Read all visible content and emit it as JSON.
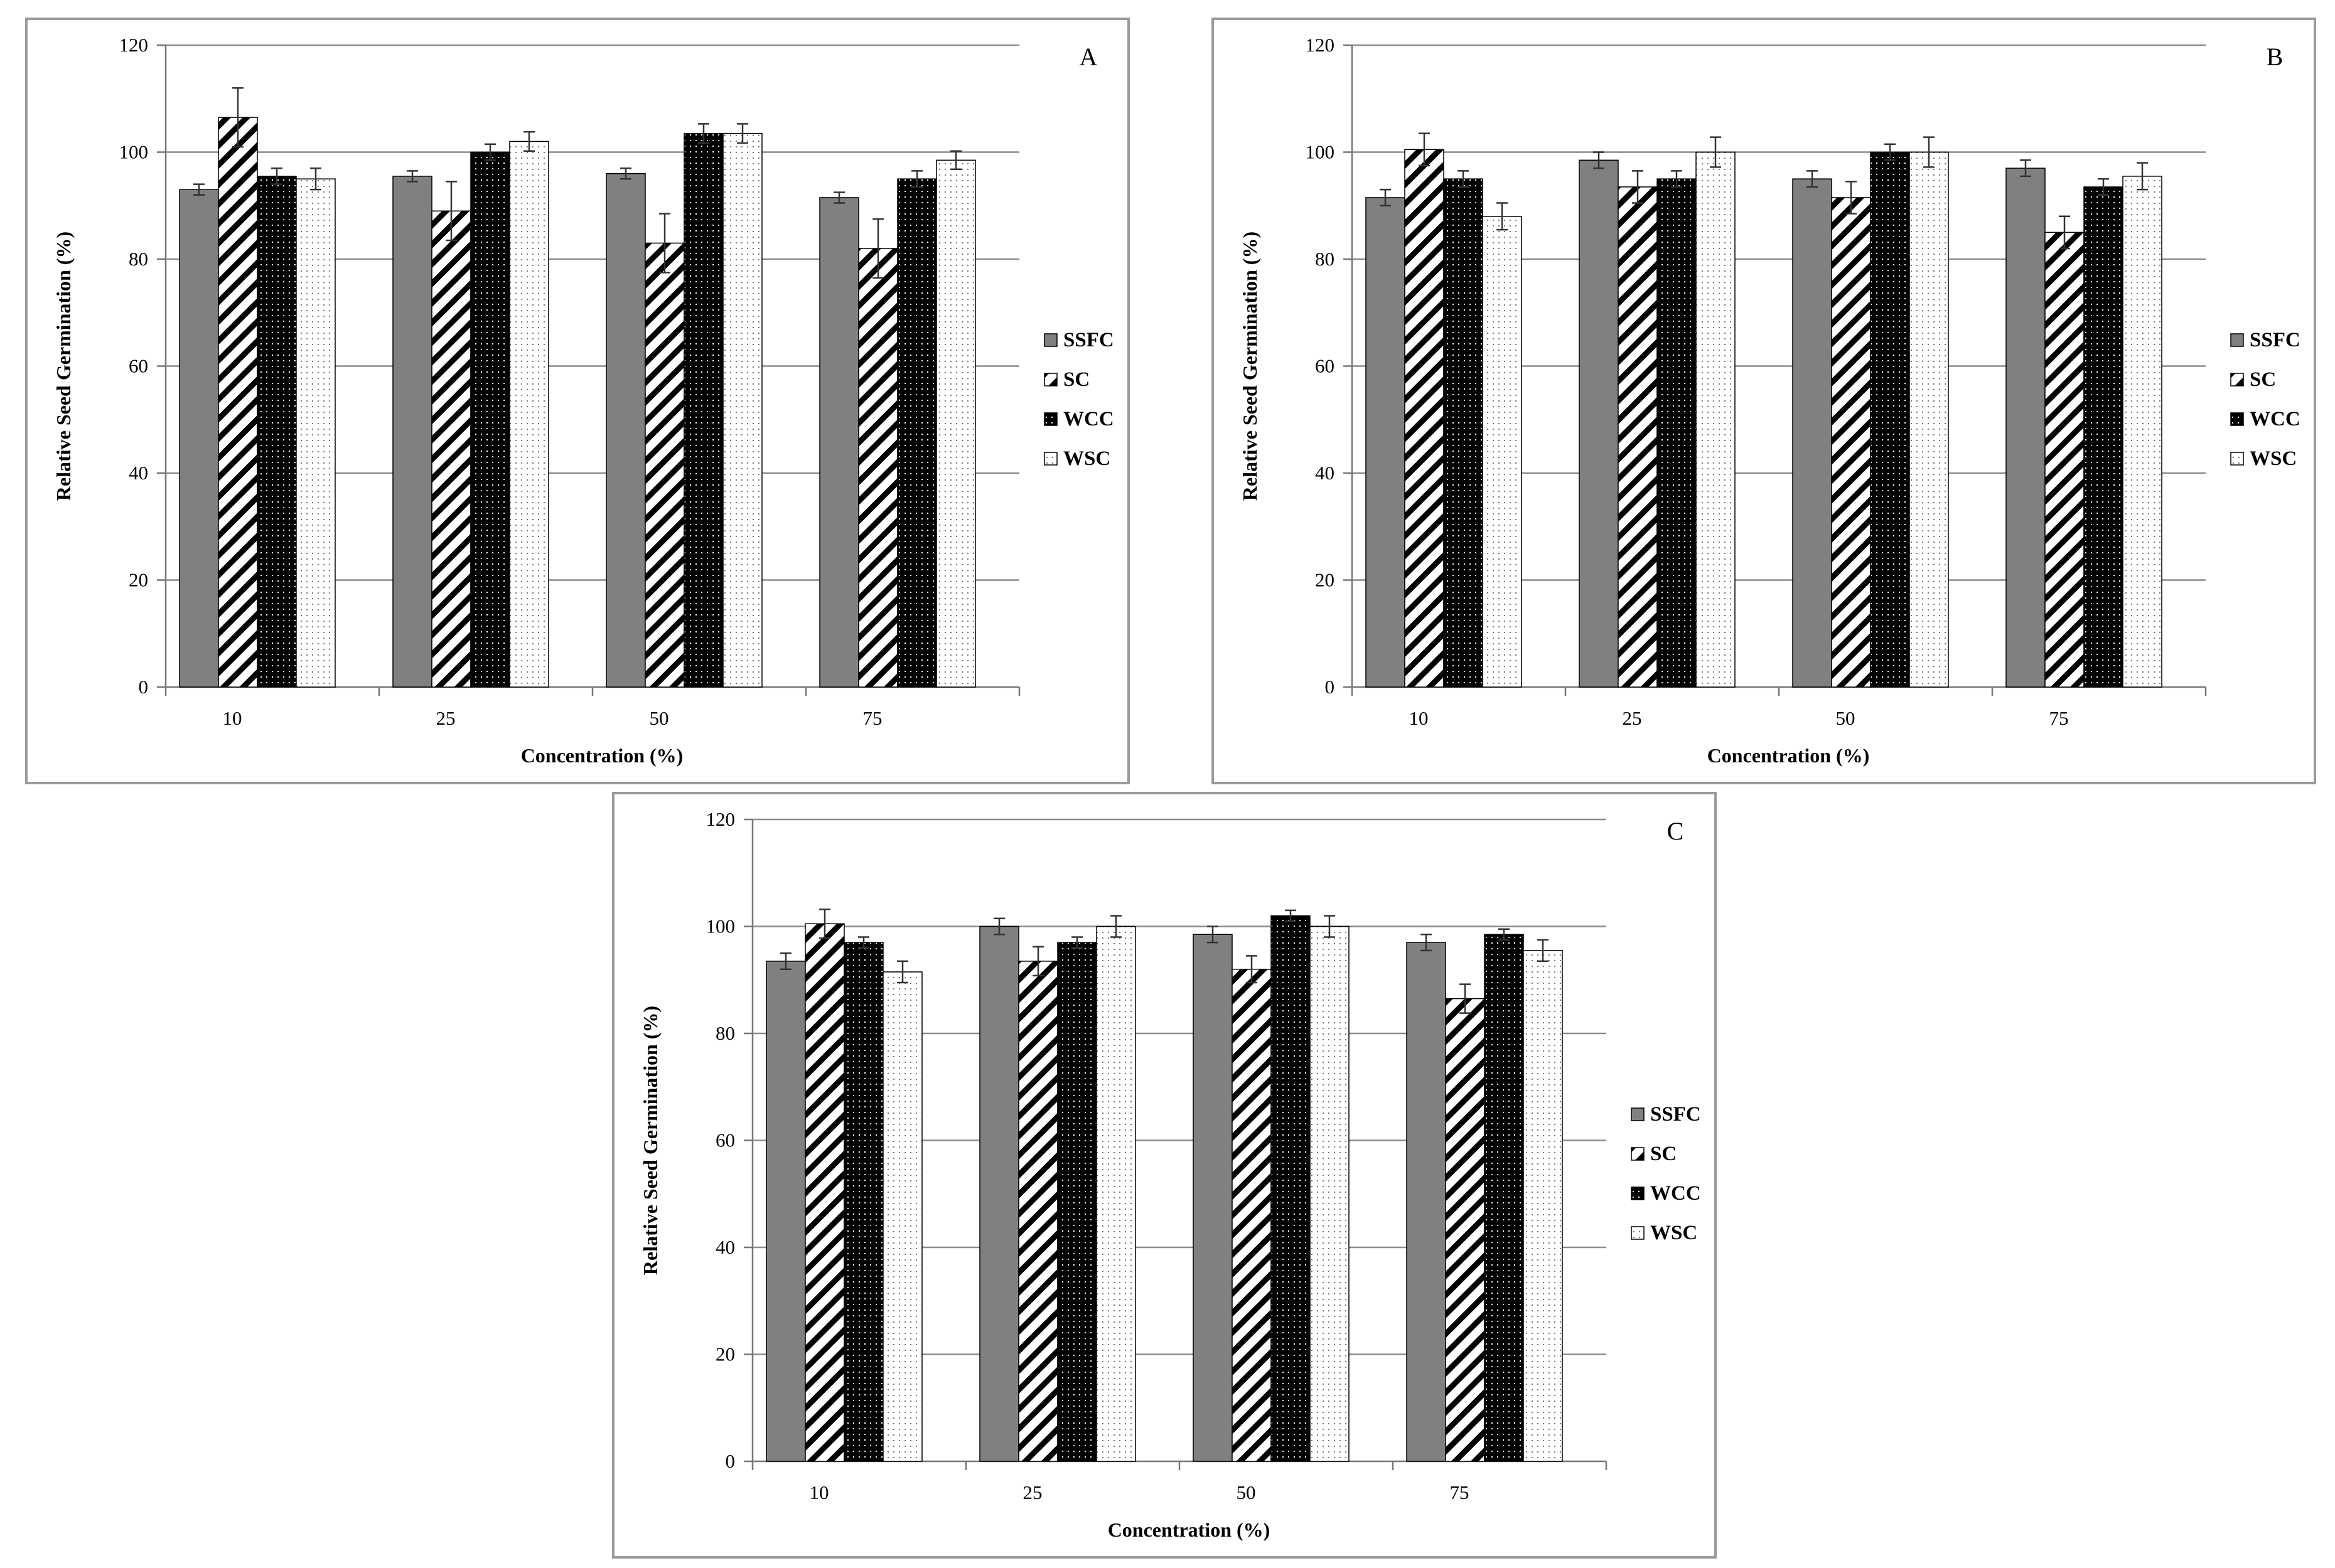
{
  "chart_data": [
    {
      "panel": "A",
      "type": "bar",
      "xlabel": "Concentration (%)",
      "ylabel": "Relative Seed Germination (%)",
      "ylim": [
        0,
        120
      ],
      "yticks": [
        "0",
        "20",
        "40",
        "60",
        "80",
        "100",
        "120"
      ],
      "categories": [
        "10",
        "25",
        "50",
        "75"
      ],
      "legend": "right",
      "series": [
        {
          "name": "SSFC",
          "pattern": "solid-gray",
          "values": [
            93,
            95.5,
            96,
            91.5
          ],
          "errors": [
            1,
            1,
            1,
            1
          ]
        },
        {
          "name": "SC",
          "pattern": "diagonal",
          "values": [
            106.5,
            89,
            83,
            82
          ],
          "errors": [
            5.5,
            5.5,
            5.5,
            5.5
          ]
        },
        {
          "name": "WCC",
          "pattern": "dotted-black",
          "values": [
            95.5,
            100,
            103.5,
            95
          ],
          "errors": [
            1.5,
            1.5,
            1.8,
            1.5
          ]
        },
        {
          "name": "WSC",
          "pattern": "dotted-white",
          "values": [
            95,
            102,
            103.5,
            98.5
          ],
          "errors": [
            2,
            1.8,
            1.8,
            1.7
          ]
        }
      ]
    },
    {
      "panel": "B",
      "type": "bar",
      "xlabel": "Concentration (%)",
      "ylabel": "Relative Seed Germination (%)",
      "ylim": [
        0,
        120
      ],
      "yticks": [
        "0",
        "20",
        "40",
        "60",
        "80",
        "100",
        "120"
      ],
      "categories": [
        "10",
        "25",
        "50",
        "75"
      ],
      "legend": "right",
      "series": [
        {
          "name": "SSFC",
          "pattern": "solid-gray",
          "values": [
            91.5,
            98.5,
            95,
            97
          ],
          "errors": [
            1.5,
            1.5,
            1.5,
            1.5
          ]
        },
        {
          "name": "SC",
          "pattern": "diagonal",
          "values": [
            100.5,
            93.5,
            91.5,
            85
          ],
          "errors": [
            3,
            3,
            3,
            3
          ]
        },
        {
          "name": "WCC",
          "pattern": "dotted-black",
          "values": [
            95,
            95,
            100,
            93.5
          ],
          "errors": [
            1.5,
            1.5,
            1.5,
            1.5
          ]
        },
        {
          "name": "WSC",
          "pattern": "dotted-white",
          "values": [
            88,
            100,
            100,
            95.5
          ],
          "errors": [
            2.5,
            2.8,
            2.8,
            2.5
          ]
        }
      ]
    },
    {
      "panel": "C",
      "type": "bar",
      "xlabel": "Concentration (%)",
      "ylabel": "Relative Seed Germination (%)",
      "ylim": [
        0,
        120
      ],
      "yticks": [
        "0",
        "20",
        "40",
        "60",
        "80",
        "100",
        "120"
      ],
      "categories": [
        "10",
        "25",
        "50",
        "75"
      ],
      "legend": "right",
      "series": [
        {
          "name": "SSFC",
          "pattern": "solid-gray",
          "values": [
            93.5,
            100,
            98.5,
            97
          ],
          "errors": [
            1.5,
            1.5,
            1.5,
            1.5
          ]
        },
        {
          "name": "SC",
          "pattern": "diagonal",
          "values": [
            100.5,
            93.5,
            92,
            86.5
          ],
          "errors": [
            2.7,
            2.7,
            2.5,
            2.7
          ]
        },
        {
          "name": "WCC",
          "pattern": "dotted-black",
          "values": [
            97,
            97,
            102,
            98.5
          ],
          "errors": [
            1,
            1,
            1,
            1
          ]
        },
        {
          "name": "WSC",
          "pattern": "dotted-white",
          "values": [
            91.5,
            100,
            100,
            95.5
          ],
          "errors": [
            2,
            2,
            2,
            2
          ]
        }
      ]
    }
  ],
  "colors": {
    "ssfc": "#808080",
    "grid": "#8c8c8c",
    "frame": "#9a9a9a"
  }
}
